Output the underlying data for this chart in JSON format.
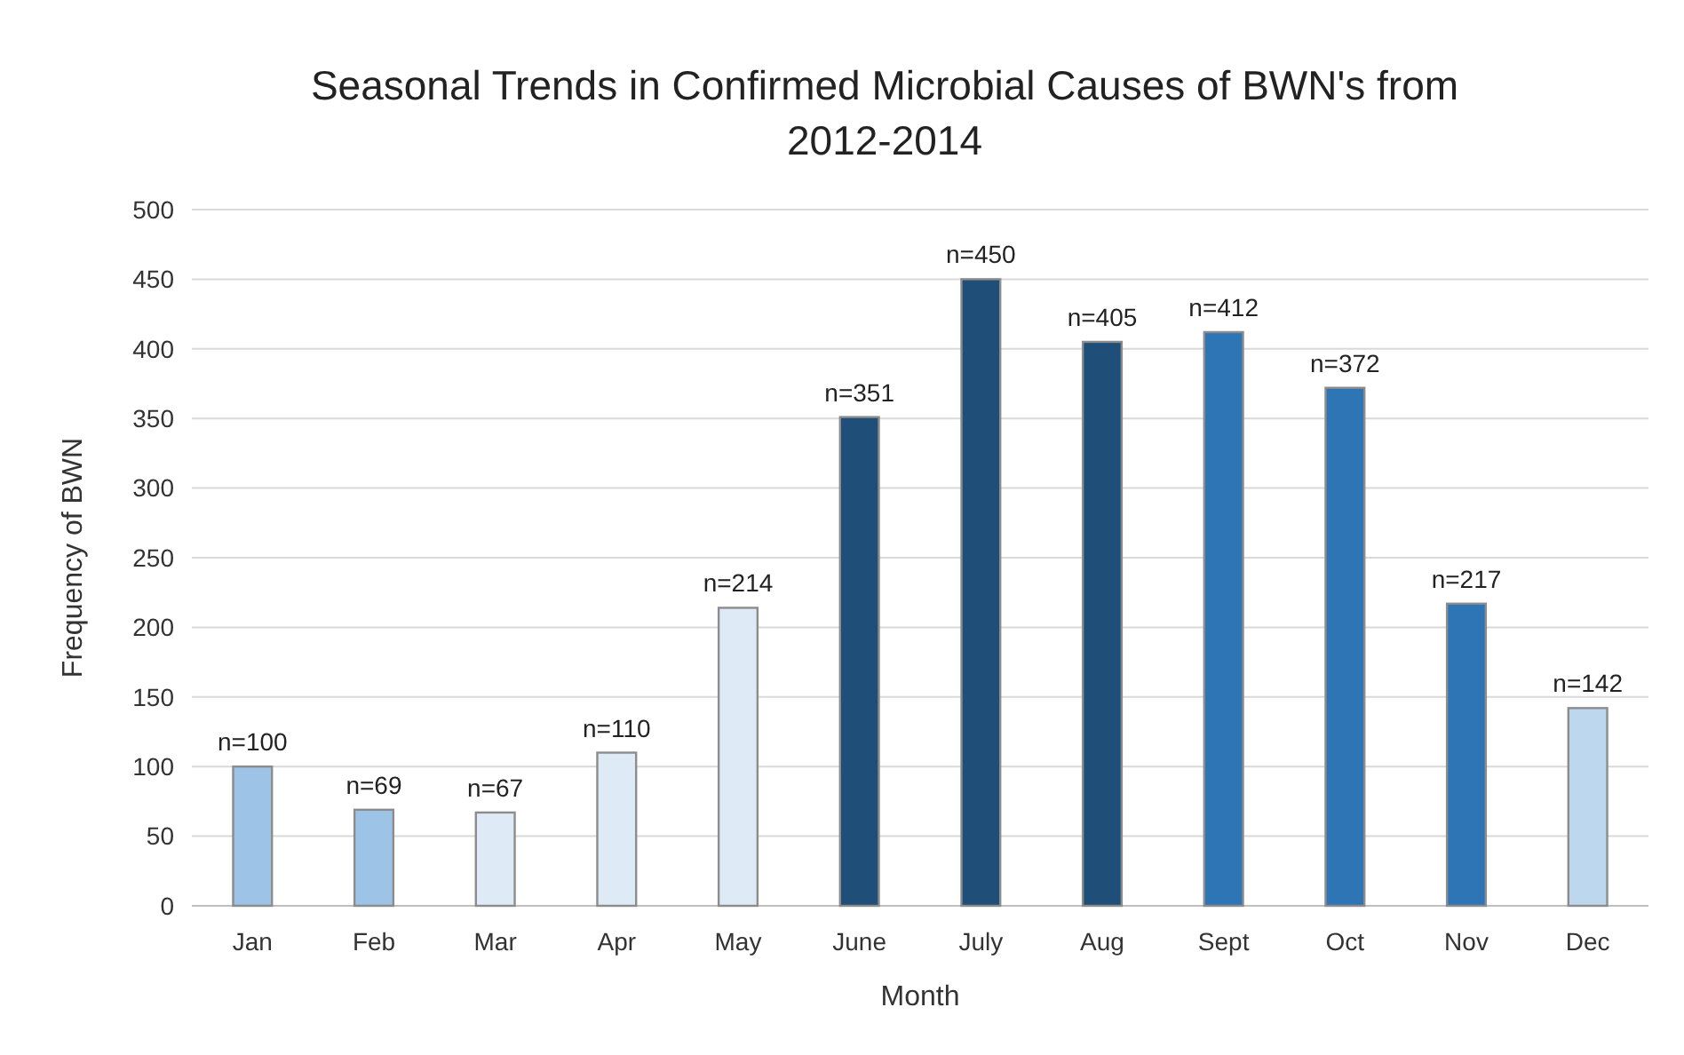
{
  "chart_data": {
    "type": "bar",
    "title": "Seasonal Trends in Confirmed Microbial Causes of BWN's from 2012-2014",
    "xlabel": "Month",
    "ylabel": "Frequency of BWN",
    "categories": [
      "Jan",
      "Feb",
      "Mar",
      "Apr",
      "May",
      "June",
      "July",
      "Aug",
      "Sept",
      "Oct",
      "Nov",
      "Dec"
    ],
    "values": [
      100,
      69,
      67,
      110,
      214,
      351,
      450,
      405,
      412,
      372,
      217,
      142
    ],
    "value_labels": [
      "n=100",
      "n=69",
      "n=67",
      "n=110",
      "n=214",
      "n=351",
      "n=450",
      "n=405",
      "n=412",
      "n=372",
      "n=217",
      "n=142"
    ],
    "colors": [
      "#9dc3e6",
      "#9dc3e6",
      "#deebf7",
      "#deebf7",
      "#deebf7",
      "#1f4e79",
      "#1f4e79",
      "#1f4e79",
      "#2e75b6",
      "#2e75b6",
      "#2e75b6",
      "#bdd7ee"
    ],
    "ylim": [
      0,
      500
    ],
    "yticks": [
      0,
      50,
      100,
      150,
      200,
      250,
      300,
      350,
      400,
      450,
      500
    ],
    "grid": "y"
  }
}
